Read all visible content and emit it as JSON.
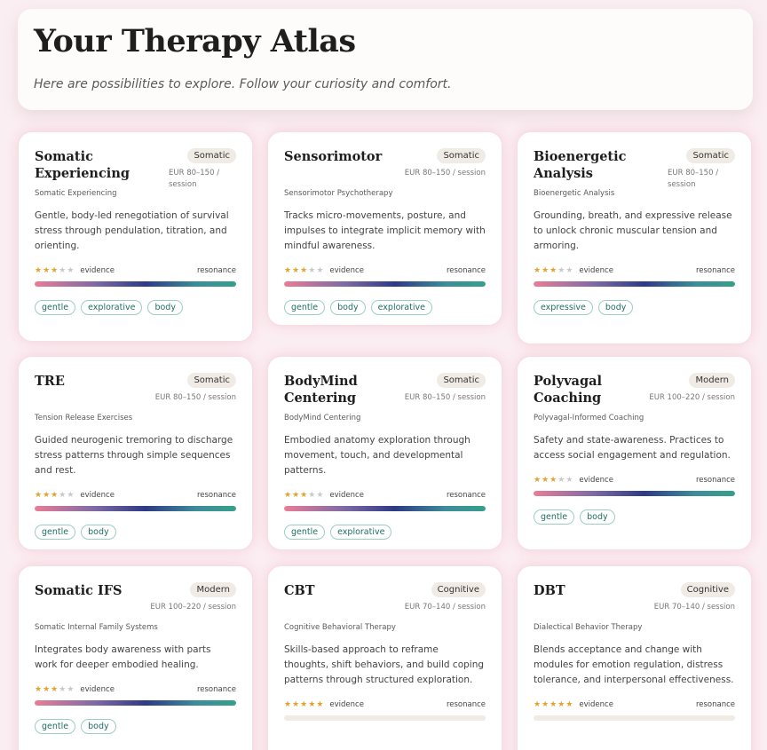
{
  "header": {
    "title": "Your Therapy Atlas",
    "subtitle": "Here are possibilities to explore. Follow your curiosity and comfort."
  },
  "labels": {
    "evidence": "evidence",
    "resonance": "resonance"
  },
  "cards": [
    {
      "name": "Somatic Experiencing",
      "badge": "Somatic",
      "price": "EUR 80–150 / session",
      "full_name": "Somatic Experiencing",
      "description": "Gentle, body-led renegotiation of survival stress through pendulation, titration, and orienting.",
      "evidence_stars": 3,
      "resonance_fraction": 1.0,
      "tags": [
        "gentle",
        "explorative",
        "body"
      ]
    },
    {
      "name": "Sensorimotor",
      "badge": "Somatic",
      "price": "EUR 80–150 / session",
      "full_name": "Sensorimotor Psychotherapy",
      "description": "Tracks micro-movements, posture, and impulses to integrate implicit memory with mindful awareness.",
      "evidence_stars": 3,
      "resonance_fraction": 1.0,
      "tags": [
        "gentle",
        "body",
        "explorative"
      ]
    },
    {
      "name": "Bioenergetic Analysis",
      "badge": "Somatic",
      "price": "EUR 80–150 / session",
      "full_name": "Bioenergetic Analysis",
      "description": "Grounding, breath, and expressive release to unlock chronic muscular tension and armoring.",
      "evidence_stars": 3,
      "resonance_fraction": 1.0,
      "tags": [
        "expressive",
        "body"
      ]
    },
    {
      "name": "TRE",
      "badge": "Somatic",
      "price": "EUR 80–150 / session",
      "full_name": "Tension Release Exercises",
      "description": "Guided neurogenic tremoring to discharge stress patterns through simple sequences and rest.",
      "evidence_stars": 3,
      "resonance_fraction": 1.0,
      "tags": [
        "gentle",
        "body"
      ]
    },
    {
      "name": "BodyMind Centering",
      "badge": "Somatic",
      "price": "EUR 80–150 / session",
      "full_name": "BodyMind Centering",
      "description": "Embodied anatomy exploration through movement, touch, and developmental patterns.",
      "evidence_stars": 3,
      "resonance_fraction": 1.0,
      "tags": [
        "gentle",
        "explorative"
      ]
    },
    {
      "name": "Polyvagal Coaching",
      "badge": "Modern",
      "price": "EUR 100–220 / session",
      "full_name": "Polyvagal-Informed Coaching",
      "description": "Safety and state-awareness. Practices to access social engagement and regulation.",
      "evidence_stars": 3,
      "resonance_fraction": 1.0,
      "tags": [
        "gentle",
        "body"
      ]
    },
    {
      "name": "Somatic IFS",
      "badge": "Modern",
      "price": "EUR 100–220 / session",
      "full_name": "Somatic Internal Family Systems",
      "description": "Integrates body awareness with parts work for deeper embodied healing.",
      "evidence_stars": 3,
      "resonance_fraction": 1.0,
      "tags": [
        "gentle",
        "body"
      ]
    },
    {
      "name": "CBT",
      "badge": "Cognitive",
      "price": "EUR 70–140 / session",
      "full_name": "Cognitive Behavioral Therapy",
      "description": "Skills-based approach to reframe thoughts, shift behaviors, and build coping patterns through structured exploration.",
      "evidence_stars": 5,
      "resonance_fraction": 0,
      "tags": []
    },
    {
      "name": "DBT",
      "badge": "Cognitive",
      "price": "EUR 70–140 / session",
      "full_name": "Dialectical Behavior Therapy",
      "description": "Blends acceptance and change with modules for emotion regulation, distress tolerance, and interpersonal effectiveness.",
      "evidence_stars": 5,
      "resonance_fraction": 0,
      "tags": []
    }
  ],
  "colors": {
    "star_on": "#e7a12a",
    "star_off": "#c9c9c9",
    "tag_text": "#1f6e64",
    "badge_bg": "#f1ebe6"
  }
}
